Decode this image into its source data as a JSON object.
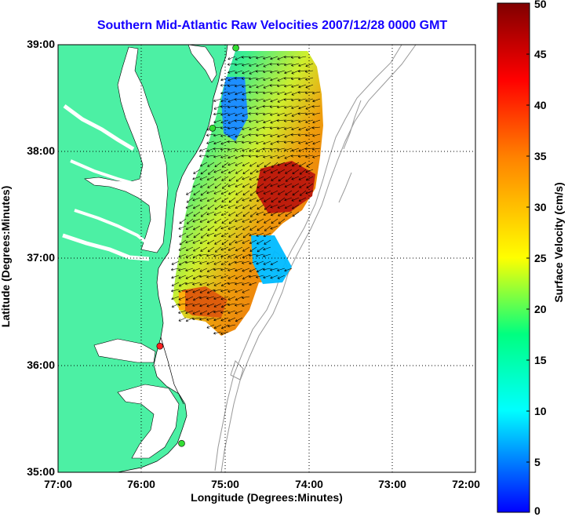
{
  "title": "Southern Mid-Atlantic Raw Velocities 2007/12/28 0000 GMT",
  "xlabel": "Longitude (Degrees:Minutes)",
  "ylabel": "Latitude (Degrees:Minutes)",
  "colorbar": {
    "label": "Surface Velocity (cm/s)",
    "ticks": [
      "50",
      "45",
      "40",
      "35",
      "30",
      "25",
      "20",
      "15",
      "10",
      "5",
      "0"
    ],
    "range": [
      0,
      50
    ],
    "colors": [
      "#0000ff",
      "#00ffff",
      "#00ff80",
      "#ffff00",
      "#ff8000",
      "#ff0000",
      "#800000"
    ]
  },
  "latitude_ticks": [
    "39:00",
    "38:00",
    "37:00",
    "36:00",
    "35:00"
  ],
  "longitude_ticks": [
    "77:00",
    "76:00",
    "75:00",
    "74:00",
    "73:00",
    "72:00"
  ],
  "colors": {
    "land": "#4cf0a4",
    "water": "#ffffff",
    "title": "#1400ff",
    "bathymetry": "#999999",
    "station_active": "#33dd33",
    "station_alert": "#ff2020"
  },
  "stations": [
    {
      "status": "active",
      "lon": -74.87,
      "lat": 38.97
    },
    {
      "status": "active",
      "lon": -75.15,
      "lat": 38.22
    },
    {
      "status": "alert",
      "lon": -75.78,
      "lat": 36.18
    },
    {
      "status": "active",
      "lon": -75.52,
      "lat": 35.27
    }
  ]
}
